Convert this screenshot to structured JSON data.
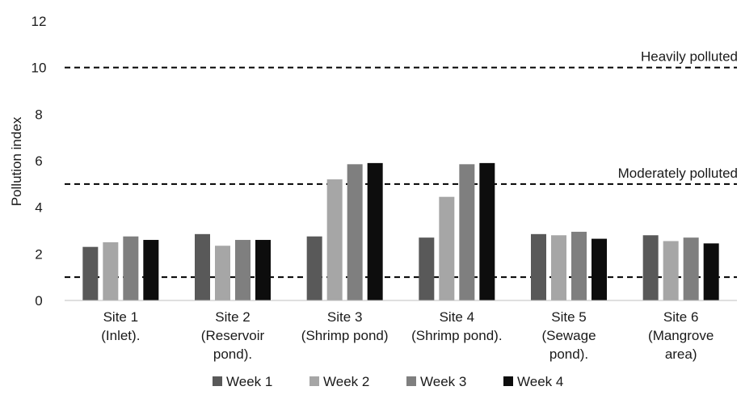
{
  "chart_data": {
    "type": "bar",
    "title": "",
    "ylabel": "Pollution index",
    "xlabel": "",
    "ylim": [
      0,
      12
    ],
    "yticks": [
      0,
      2,
      4,
      6,
      8,
      10,
      12
    ],
    "categories": [
      [
        "Site 1",
        "(Inlet)."
      ],
      [
        "Site 2",
        "(Reservoir",
        "pond)."
      ],
      [
        "Site 3",
        "(Shrimp pond)"
      ],
      [
        "Site 4",
        "(Shrimp pond)."
      ],
      [
        "Site 5",
        "(Sewage",
        "pond)."
      ],
      [
        "Site 6",
        "(Mangrove",
        "area)"
      ]
    ],
    "series": [
      {
        "name": "Week 1",
        "color": "#595959",
        "values": [
          2.3,
          2.85,
          2.75,
          2.7,
          2.85,
          2.8
        ]
      },
      {
        "name": "Week 2",
        "color": "#a6a6a6",
        "values": [
          2.5,
          2.35,
          5.2,
          4.45,
          2.8,
          2.55
        ]
      },
      {
        "name": "Week 3",
        "color": "#7f7f7f",
        "values": [
          2.75,
          2.6,
          5.85,
          5.85,
          2.95,
          2.7
        ]
      },
      {
        "name": "Week 4",
        "color": "#0d0d0d",
        "values": [
          2.6,
          2.6,
          5.9,
          5.9,
          2.65,
          2.45
        ]
      }
    ],
    "reference_lines": [
      {
        "value": 10,
        "label": "Heavily polluted"
      },
      {
        "value": 5,
        "label": "Moderately polluted"
      },
      {
        "value": 1,
        "label": ""
      }
    ],
    "grid": false,
    "legend_position": "bottom"
  }
}
